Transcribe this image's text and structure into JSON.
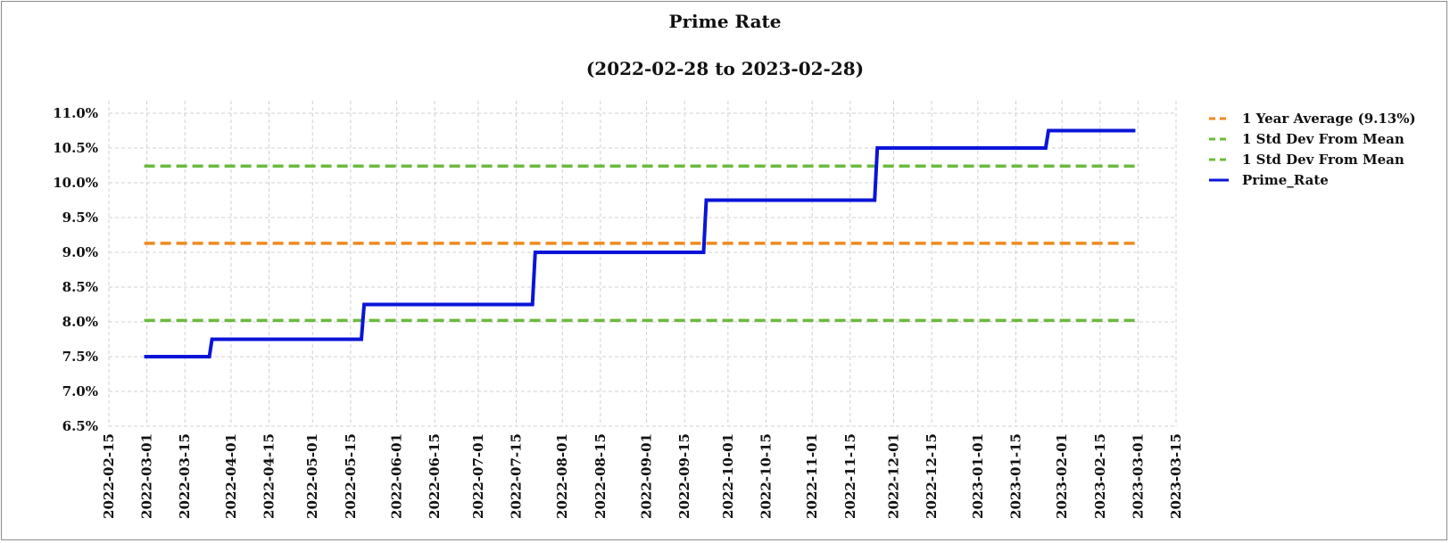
{
  "chart_data": {
    "type": "line",
    "title": "Prime Rate",
    "subtitle": "(2022-02-28 to 2023-02-28)",
    "xlabel": "",
    "ylabel": "",
    "x_axis": {
      "type": "date",
      "range": [
        "2022-02-15",
        "2023-03-15"
      ],
      "ticks": [
        "2022-02-15",
        "2022-03-01",
        "2022-03-15",
        "2022-04-01",
        "2022-04-15",
        "2022-05-01",
        "2022-05-15",
        "2022-06-01",
        "2022-06-15",
        "2022-07-01",
        "2022-07-15",
        "2022-08-01",
        "2022-08-15",
        "2022-09-01",
        "2022-09-15",
        "2022-10-01",
        "2022-10-15",
        "2022-11-01",
        "2022-11-15",
        "2022-12-01",
        "2022-12-15",
        "2023-01-01",
        "2023-01-15",
        "2023-02-01",
        "2023-02-15",
        "2023-03-01",
        "2023-03-15"
      ]
    },
    "y_axis": {
      "range": [
        6.5,
        11.0
      ],
      "ticks": [
        6.5,
        7.0,
        7.5,
        8.0,
        8.5,
        9.0,
        9.5,
        10.0,
        10.5,
        11.0
      ],
      "tick_labels": [
        "6.5%",
        "7.0%",
        "7.5%",
        "8.0%",
        "8.5%",
        "9.0%",
        "9.5%",
        "10.0%",
        "10.5%",
        "11.0%"
      ]
    },
    "grid": true,
    "legend_position": "right",
    "series": [
      {
        "name": "1 Year Average (9.13%)",
        "style": "dashed",
        "color": "#f0891c",
        "points": [
          [
            "2022-02-28",
            9.13
          ],
          [
            "2023-02-28",
            9.13
          ]
        ]
      },
      {
        "name": "1 Std Dev From Mean",
        "style": "dashed",
        "color": "#6cba3c",
        "points": [
          [
            "2022-02-28",
            10.24
          ],
          [
            "2023-02-28",
            10.24
          ]
        ]
      },
      {
        "name": "1 Std Dev From Mean",
        "style": "dashed",
        "color": "#6cba3c",
        "points": [
          [
            "2022-02-28",
            8.02
          ],
          [
            "2023-02-28",
            8.02
          ]
        ]
      },
      {
        "name": "Prime_Rate",
        "style": "solid",
        "color": "#0a14d8",
        "points": [
          [
            "2022-02-28",
            7.5
          ],
          [
            "2022-03-24",
            7.5
          ],
          [
            "2022-03-25",
            7.75
          ],
          [
            "2022-05-19",
            7.75
          ],
          [
            "2022-05-20",
            8.25
          ],
          [
            "2022-07-21",
            8.25
          ],
          [
            "2022-07-22",
            9.0
          ],
          [
            "2022-09-22",
            9.0
          ],
          [
            "2022-09-23",
            9.75
          ],
          [
            "2022-11-24",
            9.75
          ],
          [
            "2022-11-25",
            10.5
          ],
          [
            "2023-01-26",
            10.5
          ],
          [
            "2023-01-27",
            10.75
          ],
          [
            "2023-02-28",
            10.75
          ]
        ]
      }
    ]
  }
}
